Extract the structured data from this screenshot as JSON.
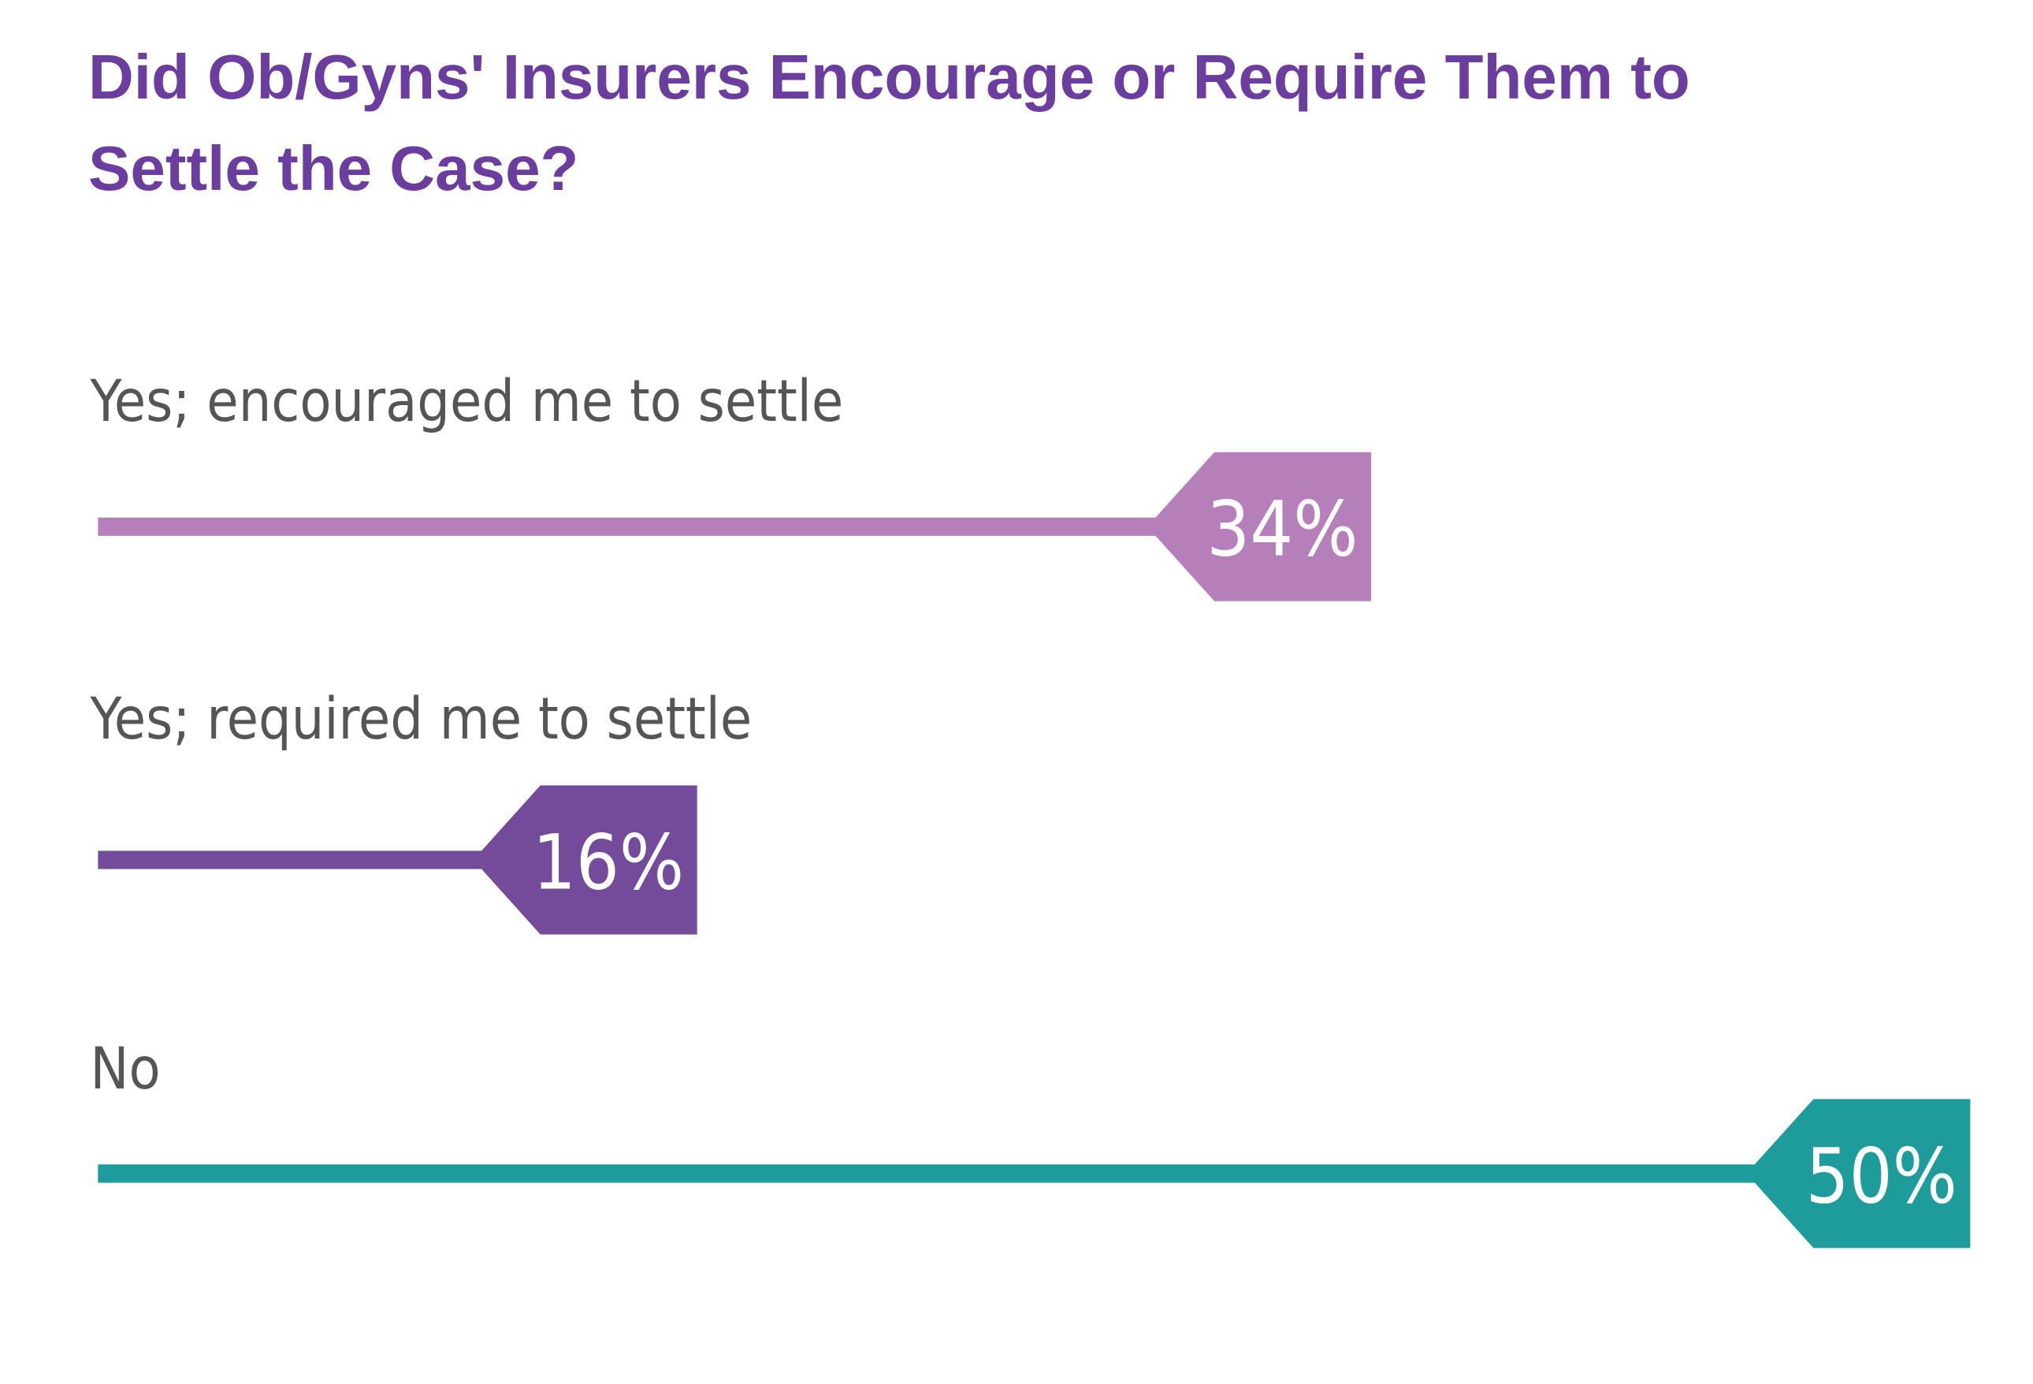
{
  "chart_data": {
    "type": "tagbar",
    "title": "Did Ob/Gyns' Insurers Encourage or Require Them to Settle the Case?",
    "categories": [
      "Yes; encouraged me to settle",
      "Yes; required me to settle",
      "No"
    ],
    "values": [
      34,
      16,
      50
    ],
    "value_labels": [
      "34%",
      "16%",
      "50%"
    ],
    "colors": [
      "#b57fba",
      "#744a9a",
      "#1e9c9c"
    ]
  }
}
